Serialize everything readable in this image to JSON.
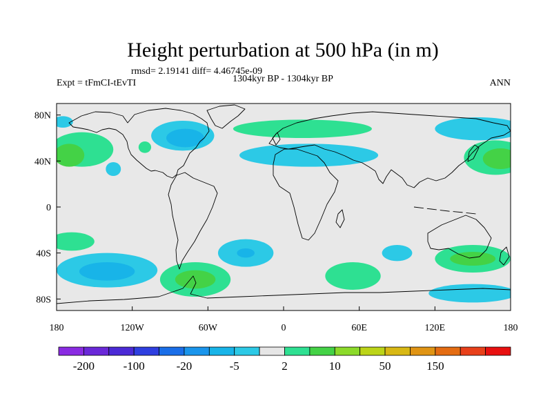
{
  "chart_data": {
    "type": "contour_map",
    "title": "Height perturbation at 500 hPa (in m)",
    "stats": "rmsd= 2.19141 diff= 4.46745e-09",
    "period": "1304kyr BP - 1304kyr BP",
    "experiment": "Expt = tFmCI-tEvTI",
    "season": "ANN",
    "xlim": [
      -180,
      180
    ],
    "ylim": [
      -90,
      90
    ],
    "x_ticks": [
      {
        "value": -180,
        "label": "180"
      },
      {
        "value": -120,
        "label": "120W"
      },
      {
        "value": -60,
        "label": "60W"
      },
      {
        "value": 0,
        "label": "0"
      },
      {
        "value": 60,
        "label": "60E"
      },
      {
        "value": 120,
        "label": "120E"
      },
      {
        "value": 180,
        "label": "180"
      }
    ],
    "y_ticks": [
      {
        "value": 80,
        "label": "80N"
      },
      {
        "value": 40,
        "label": "40N"
      },
      {
        "value": 0,
        "label": "0"
      },
      {
        "value": -40,
        "label": "40S"
      },
      {
        "value": -80,
        "label": "80S"
      }
    ],
    "colorbar": {
      "colors": [
        "#8a2be2",
        "#6a28d8",
        "#4b2ad6",
        "#2e3fe0",
        "#1a6ee8",
        "#1a95ec",
        "#18b4e8",
        "#2cc9e6",
        "#e6e6e6",
        "#2ee092",
        "#44d246",
        "#8cda2a",
        "#bcd418",
        "#d8b814",
        "#e09414",
        "#e46c12",
        "#e8401a",
        "#e81010"
      ],
      "labels": [
        {
          "after_index": 0,
          "text": "-200"
        },
        {
          "after_index": 2,
          "text": "-100"
        },
        {
          "after_index": 4,
          "text": "-20"
        },
        {
          "after_index": 6,
          "text": "-5"
        },
        {
          "after_index": 8,
          "text": "2"
        },
        {
          "after_index": 10,
          "text": "10"
        },
        {
          "after_index": 12,
          "text": "50"
        },
        {
          "after_index": 14,
          "text": "150"
        }
      ]
    },
    "anomaly_regions": [
      {
        "lon": -80,
        "lat": 62,
        "rlon": 25,
        "rlat": 13,
        "level": "light-blue"
      },
      {
        "lon": -78,
        "lat": 60,
        "rlon": 15,
        "rlat": 8,
        "level": "blue"
      },
      {
        "lon": 20,
        "lat": 45,
        "rlon": 55,
        "rlat": 10,
        "level": "light-blue"
      },
      {
        "lon": 15,
        "lat": 68,
        "rlon": 55,
        "rlat": 8,
        "level": "green-teal"
      },
      {
        "lon": 155,
        "lat": 68,
        "rlon": 35,
        "rlat": 10,
        "level": "light-blue"
      },
      {
        "lon": 168,
        "lat": 43,
        "rlon": 25,
        "rlat": 15,
        "level": "green-teal"
      },
      {
        "lon": 172,
        "lat": 42,
        "rlon": 14,
        "rlat": 9,
        "level": "green"
      },
      {
        "lon": -160,
        "lat": 50,
        "rlon": 25,
        "rlat": 15,
        "level": "green-teal"
      },
      {
        "lon": -170,
        "lat": 45,
        "rlon": 12,
        "rlat": 10,
        "level": "green"
      },
      {
        "lon": -175,
        "lat": 74,
        "rlon": 8,
        "rlat": 5,
        "level": "light-blue"
      },
      {
        "lon": -110,
        "lat": 52,
        "rlon": 5,
        "rlat": 5,
        "level": "green-teal"
      },
      {
        "lon": -135,
        "lat": 33,
        "rlon": 6,
        "rlat": 6,
        "level": "light-blue"
      },
      {
        "lon": -140,
        "lat": -55,
        "rlon": 40,
        "rlat": 15,
        "level": "light-blue"
      },
      {
        "lon": -140,
        "lat": -56,
        "rlon": 22,
        "rlat": 8,
        "level": "blue"
      },
      {
        "lon": -168,
        "lat": -30,
        "rlon": 18,
        "rlat": 8,
        "level": "green-teal"
      },
      {
        "lon": -70,
        "lat": -63,
        "rlon": 28,
        "rlat": 15,
        "level": "green-teal"
      },
      {
        "lon": -70,
        "lat": -63,
        "rlon": 16,
        "rlat": 8,
        "level": "green"
      },
      {
        "lon": -30,
        "lat": -40,
        "rlon": 22,
        "rlat": 12,
        "level": "light-blue"
      },
      {
        "lon": -30,
        "lat": -40,
        "rlon": 7,
        "rlat": 4,
        "level": "blue"
      },
      {
        "lon": 55,
        "lat": -60,
        "rlon": 22,
        "rlat": 12,
        "level": "green-teal"
      },
      {
        "lon": 90,
        "lat": -40,
        "rlon": 12,
        "rlat": 7,
        "level": "light-blue"
      },
      {
        "lon": 150,
        "lat": -45,
        "rlon": 30,
        "rlat": 12,
        "level": "green-teal"
      },
      {
        "lon": 150,
        "lat": -45,
        "rlon": 18,
        "rlat": 6,
        "level": "green"
      },
      {
        "lon": 150,
        "lat": -75,
        "rlon": 35,
        "rlat": 8,
        "level": "light-blue"
      }
    ]
  }
}
